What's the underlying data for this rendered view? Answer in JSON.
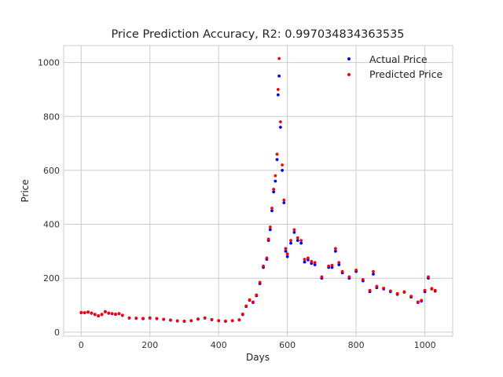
{
  "chart_data": {
    "type": "scatter",
    "title": "Price Prediction Accuracy, R2: 0.997034834363535",
    "xlabel": "Days",
    "ylabel": "Price",
    "xlim": [
      -51,
      1081
    ],
    "ylim": [
      -15,
      1063
    ],
    "xticks": [
      0,
      200,
      400,
      600,
      800,
      1000
    ],
    "yticks": [
      0,
      200,
      400,
      600,
      800,
      1000
    ],
    "grid": true,
    "legend_position": "top-right",
    "series": [
      {
        "name": "Actual Price",
        "color": "#0000ff",
        "x": [
          0,
          10,
          20,
          30,
          40,
          50,
          60,
          70,
          80,
          90,
          100,
          110,
          120,
          140,
          160,
          180,
          200,
          220,
          240,
          260,
          280,
          300,
          320,
          340,
          360,
          380,
          400,
          420,
          440,
          460,
          470,
          480,
          490,
          500,
          510,
          520,
          530,
          540,
          545,
          550,
          555,
          560,
          565,
          570,
          573,
          576,
          580,
          585,
          590,
          595,
          600,
          610,
          620,
          630,
          640,
          650,
          660,
          670,
          680,
          700,
          720,
          730,
          740,
          750,
          760,
          780,
          800,
          820,
          840,
          850,
          860,
          880,
          900,
          920,
          940,
          960,
          980,
          990,
          1000,
          1010,
          1020,
          1030
        ],
        "y": [
          72,
          72,
          74,
          70,
          65,
          60,
          65,
          76,
          70,
          68,
          66,
          68,
          62,
          52,
          51,
          50,
          52,
          50,
          47,
          44,
          41,
          40,
          42,
          48,
          52,
          46,
          42,
          40,
          42,
          45,
          65,
          95,
          118,
          110,
          135,
          180,
          240,
          270,
          340,
          380,
          450,
          520,
          560,
          640,
          880,
          950,
          760,
          600,
          480,
          300,
          280,
          330,
          370,
          340,
          330,
          260,
          268,
          255,
          250,
          200,
          240,
          240,
          300,
          250,
          220,
          200,
          225,
          190,
          150,
          215,
          165,
          160,
          150,
          140,
          148,
          130,
          110,
          115,
          150,
          200,
          160,
          152
        ]
      },
      {
        "name": "Predicted Price",
        "color": "#ff0000",
        "x": [
          0,
          10,
          20,
          30,
          40,
          50,
          60,
          70,
          80,
          90,
          100,
          110,
          120,
          140,
          160,
          180,
          200,
          220,
          240,
          260,
          280,
          300,
          320,
          340,
          360,
          380,
          400,
          420,
          440,
          460,
          470,
          480,
          490,
          500,
          510,
          520,
          530,
          540,
          545,
          550,
          555,
          560,
          565,
          570,
          573,
          576,
          580,
          585,
          590,
          595,
          600,
          610,
          620,
          630,
          640,
          650,
          660,
          670,
          680,
          700,
          720,
          730,
          740,
          750,
          760,
          780,
          800,
          820,
          840,
          850,
          860,
          880,
          900,
          920,
          940,
          960,
          980,
          990,
          1000,
          1010,
          1020,
          1030
        ],
        "y": [
          73,
          72,
          75,
          71,
          66,
          61,
          66,
          75,
          71,
          69,
          67,
          69,
          63,
          53,
          52,
          51,
          53,
          51,
          48,
          45,
          42,
          41,
          43,
          49,
          53,
          47,
          43,
          41,
          43,
          46,
          67,
          97,
          120,
          112,
          138,
          185,
          245,
          275,
          345,
          390,
          460,
          530,
          580,
          660,
          900,
          1015,
          780,
          620,
          490,
          310,
          290,
          340,
          380,
          350,
          340,
          270,
          275,
          262,
          258,
          205,
          245,
          248,
          310,
          258,
          225,
          205,
          230,
          195,
          155,
          225,
          170,
          163,
          153,
          143,
          150,
          133,
          112,
          118,
          155,
          205,
          162,
          155
        ]
      }
    ]
  }
}
